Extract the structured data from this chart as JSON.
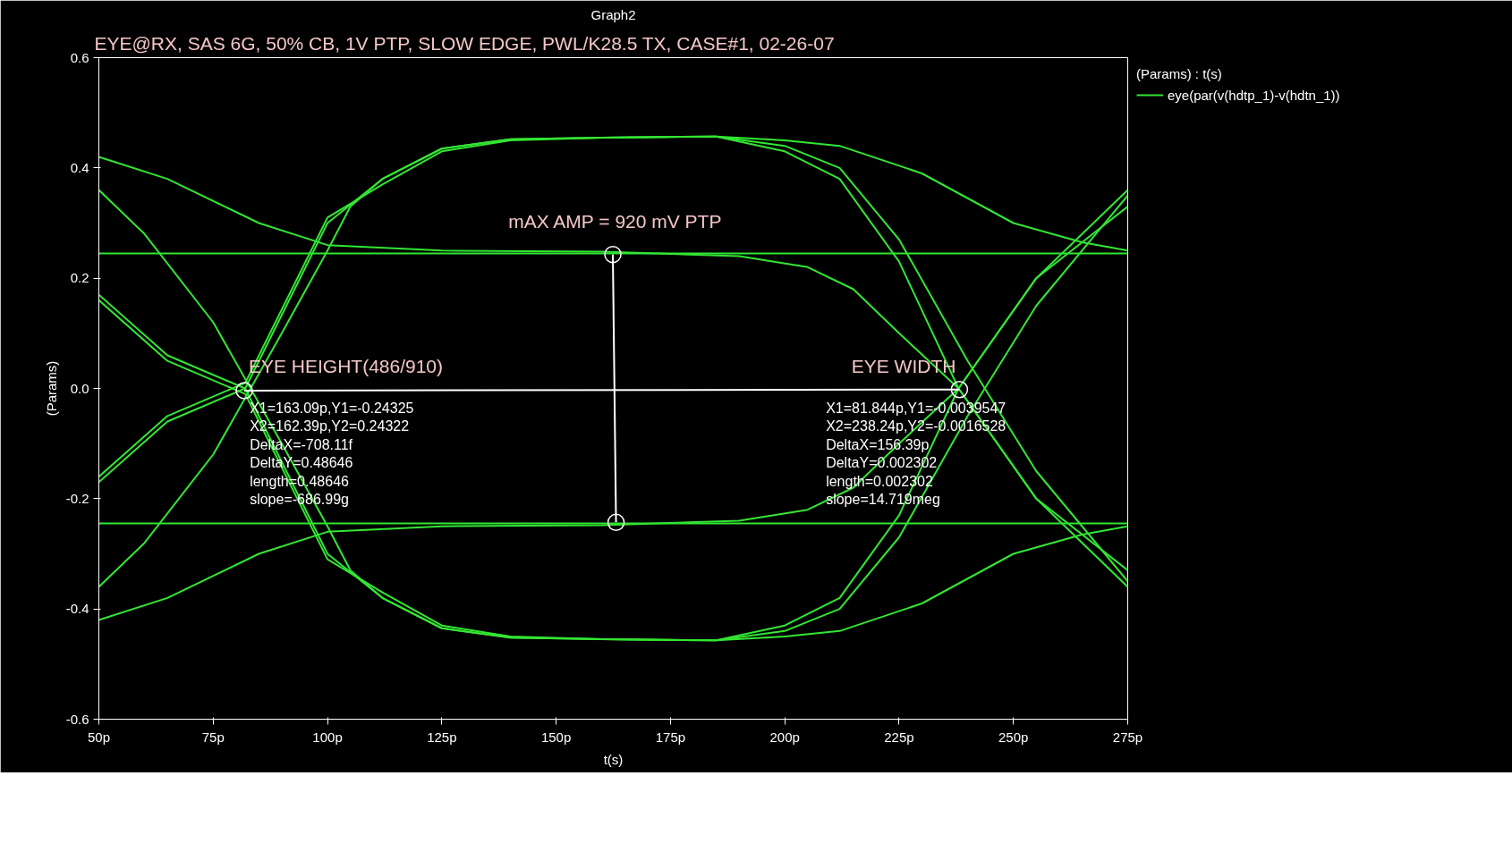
{
  "chart_data": {
    "type": "line",
    "title": "Graph2",
    "subtitle": "EYE@RX, SAS 6G, 50% CB, 1V PTP, SLOW EDGE, PWL/K28.5 TX, CASE#1, 02-26-07",
    "xlabel": "t(s)",
    "ylabel": "(Params)",
    "legend_title": "(Params) : t(s)",
    "legend": "top right",
    "grid": false,
    "marker": "none",
    "line_style": "solid",
    "xlim": [
      50,
      275
    ],
    "ylim": [
      -0.6,
      0.6
    ],
    "xticks": [
      {
        "value": 50,
        "label": "50p"
      },
      {
        "value": 75,
        "label": "75p"
      },
      {
        "value": 100,
        "label": "100p"
      },
      {
        "value": 125,
        "label": "125p"
      },
      {
        "value": 150,
        "label": "150p"
      },
      {
        "value": 175,
        "label": "175p"
      },
      {
        "value": 200,
        "label": "200p"
      },
      {
        "value": 225,
        "label": "225p"
      },
      {
        "value": 250,
        "label": "250p"
      },
      {
        "value": 275,
        "label": "275p"
      }
    ],
    "yticks": [
      {
        "value": -0.6,
        "label": "-0.6"
      },
      {
        "value": -0.4,
        "label": "-0.4"
      },
      {
        "value": -0.2,
        "label": "-0.2"
      },
      {
        "value": 0,
        "label": "0.0"
      },
      {
        "value": 0.2,
        "label": "0.2"
      },
      {
        "value": 0.4,
        "label": "0.4"
      },
      {
        "value": 0.6,
        "label": "0.6"
      }
    ],
    "series": [
      {
        "name": "eye(par(v(hdtp_1)-v(hdtn_1))",
        "color": "#33e633",
        "x": [
          50,
          65,
          82,
          100,
          112,
          125,
          140,
          160,
          185,
          200,
          212,
          225,
          238,
          255,
          275
        ],
        "values": [
          -0.17,
          -0.06,
          0,
          0.3,
          0.38,
          0.435,
          0.452,
          0.455,
          0.457,
          0.43,
          0.38,
          0.23,
          0,
          -0.2,
          -0.36
        ]
      },
      {
        "color": "#33e633",
        "x": [
          50,
          65,
          82,
          100,
          112,
          125,
          140,
          160,
          185,
          200,
          212,
          225,
          238,
          255,
          275
        ],
        "values": [
          0.17,
          0.06,
          0,
          -0.3,
          -0.38,
          -0.435,
          -0.452,
          -0.455,
          -0.457,
          -0.43,
          -0.38,
          -0.23,
          0,
          0.2,
          0.36
        ]
      },
      {
        "color": "#33e633",
        "x": [
          50,
          60,
          75,
          90,
          100,
          105,
          112,
          125,
          140,
          160,
          185,
          200,
          212,
          225,
          240,
          255,
          275
        ],
        "values": [
          0.36,
          0.28,
          0.12,
          -0.1,
          -0.25,
          -0.33,
          -0.38,
          -0.435,
          -0.452,
          -0.455,
          -0.457,
          -0.44,
          -0.4,
          -0.27,
          -0.05,
          0.15,
          0.35
        ]
      },
      {
        "color": "#33e633",
        "x": [
          50,
          60,
          75,
          90,
          100,
          105,
          112,
          125,
          140,
          160,
          185,
          200,
          212,
          225,
          240,
          255,
          275
        ],
        "values": [
          -0.36,
          -0.28,
          -0.12,
          0.1,
          0.25,
          0.33,
          0.38,
          0.435,
          0.452,
          0.455,
          0.457,
          0.44,
          0.4,
          0.27,
          0.05,
          -0.15,
          -0.35
        ]
      },
      {
        "color": "#33e633",
        "x": [
          50,
          65,
          85,
          100,
          125,
          160,
          190,
          205,
          215,
          225,
          238,
          255,
          275
        ],
        "values": [
          0.42,
          0.38,
          0.3,
          0.26,
          0.25,
          0.248,
          0.24,
          0.22,
          0.18,
          0.1,
          0,
          -0.2,
          -0.33
        ]
      },
      {
        "color": "#33e633",
        "x": [
          50,
          65,
          85,
          100,
          125,
          160,
          190,
          205,
          215,
          225,
          238,
          255,
          275
        ],
        "values": [
          -0.42,
          -0.38,
          -0.3,
          -0.26,
          -0.25,
          -0.248,
          -0.24,
          -0.22,
          -0.18,
          -0.1,
          0,
          0.2,
          0.33
        ]
      },
      {
        "color": "#33e633",
        "x": [
          50,
          65,
          82,
          100,
          112,
          125,
          140,
          160,
          185,
          200,
          212,
          230,
          250,
          265,
          275
        ],
        "values": [
          -0.16,
          -0.05,
          0.01,
          0.31,
          0.37,
          0.43,
          0.45,
          0.455,
          0.457,
          0.45,
          0.44,
          0.39,
          0.3,
          0.265,
          0.25
        ]
      },
      {
        "color": "#33e633",
        "x": [
          50,
          65,
          82,
          100,
          112,
          125,
          140,
          160,
          185,
          200,
          212,
          230,
          250,
          265,
          275
        ],
        "values": [
          0.16,
          0.05,
          -0.01,
          -0.31,
          -0.37,
          -0.43,
          -0.45,
          -0.455,
          -0.457,
          -0.45,
          -0.44,
          -0.39,
          -0.3,
          -0.265,
          -0.25
        ]
      },
      {
        "color": "#33e633",
        "x": [
          50,
          275
        ],
        "values": [
          0.245,
          0.245
        ]
      },
      {
        "color": "#33e633",
        "x": [
          50,
          275
        ],
        "values": [
          -0.245,
          -0.245
        ]
      },
      {
        "color": "#ffffff",
        "marker": "circle",
        "x": [
          163.1,
          162.4
        ],
        "values": [
          -0.243,
          0.243
        ]
      },
      {
        "color": "#ffffff",
        "marker": "circle",
        "x": [
          81.8,
          238.2
        ],
        "values": [
          -0.004,
          -0.002
        ]
      }
    ],
    "annotations": [
      "mAX AMP = 920 mV PTP",
      "EYE HEIGHT(486/910)",
      "X1=163.09p,Y1=-0.24325\nX2=162.39p,Y2=0.24322\nDeltaX=-708.11f\nDeltaY=0.48646\nlength=0.48646\nslope=-686.99g",
      "EYE WIDTH",
      "X1=81.844p,Y1=-0.0039547\nX2=238.24p,Y2=-0.0016528\nDeltaX=156.39p\nDeltaY=0.002302\nlength=0.002302\nslope=14.719meg"
    ]
  }
}
